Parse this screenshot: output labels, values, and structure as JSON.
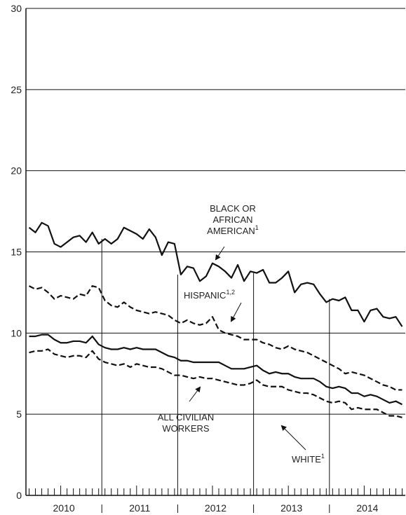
{
  "chart_data": {
    "type": "line",
    "ylim": [
      0,
      30
    ],
    "yticks": [
      0,
      5,
      10,
      15,
      20,
      25,
      30
    ],
    "ytick_labels": [
      "0",
      "5",
      "10",
      "15",
      "20",
      "25",
      "30"
    ],
    "xlim": [
      "2010-01",
      "2014-12"
    ],
    "year_labels": [
      "2010",
      "2011",
      "2012",
      "2013",
      "2014"
    ],
    "grid": "horizontal",
    "series": [
      {
        "name": "BLACK OR AFRICAN AMERICAN",
        "style": "solid",
        "values": [
          16.5,
          16.2,
          16.8,
          16.6,
          15.5,
          15.3,
          15.6,
          15.9,
          16.0,
          15.6,
          16.2,
          15.5,
          15.8,
          15.5,
          15.8,
          16.5,
          16.3,
          16.1,
          15.8,
          16.4,
          15.9,
          14.8,
          15.6,
          15.5,
          13.6,
          14.1,
          14.0,
          13.2,
          13.5,
          14.3,
          14.1,
          13.8,
          13.4,
          14.2,
          13.2,
          13.8,
          13.7,
          13.9,
          13.1,
          13.1,
          13.4,
          13.8,
          12.5,
          13.0,
          13.1,
          13.0,
          12.4,
          11.9,
          12.1,
          12.0,
          12.2,
          11.4,
          11.4,
          10.7,
          11.4,
          11.5,
          11.0,
          10.9,
          11.0,
          10.4
        ]
      },
      {
        "name": "HISPANIC",
        "style": "dashed",
        "values": [
          12.9,
          12.7,
          12.8,
          12.5,
          12.1,
          12.3,
          12.2,
          12.1,
          12.4,
          12.3,
          12.9,
          12.8,
          12.0,
          11.7,
          11.6,
          11.9,
          11.6,
          11.4,
          11.3,
          11.2,
          11.3,
          11.2,
          11.1,
          10.8,
          10.6,
          10.8,
          10.6,
          10.5,
          10.6,
          11.0,
          10.2,
          10.0,
          9.9,
          9.8,
          9.6,
          9.6,
          9.6,
          9.4,
          9.3,
          9.1,
          9.0,
          9.2,
          9.0,
          8.9,
          8.8,
          8.6,
          8.4,
          8.2,
          8.0,
          7.8,
          7.5,
          7.6,
          7.5,
          7.4,
          7.2,
          7.0,
          6.8,
          6.7,
          6.5,
          6.5
        ]
      },
      {
        "name": "ALL CIVILIAN WORKERS",
        "style": "solid",
        "values": [
          9.8,
          9.8,
          9.9,
          9.9,
          9.6,
          9.4,
          9.4,
          9.5,
          9.5,
          9.4,
          9.8,
          9.3,
          9.1,
          9.0,
          9.0,
          9.1,
          9.0,
          9.1,
          9.0,
          9.0,
          9.0,
          8.8,
          8.6,
          8.5,
          8.3,
          8.3,
          8.2,
          8.2,
          8.2,
          8.2,
          8.2,
          8.0,
          7.8,
          7.8,
          7.8,
          7.9,
          8.0,
          7.7,
          7.5,
          7.6,
          7.5,
          7.5,
          7.3,
          7.2,
          7.2,
          7.2,
          7.0,
          6.7,
          6.6,
          6.7,
          6.6,
          6.3,
          6.3,
          6.1,
          6.2,
          6.1,
          5.9,
          5.7,
          5.8,
          5.6
        ]
      },
      {
        "name": "WHITE",
        "style": "dashed",
        "values": [
          8.8,
          8.9,
          8.9,
          9.0,
          8.7,
          8.6,
          8.5,
          8.6,
          8.6,
          8.5,
          8.9,
          8.4,
          8.2,
          8.1,
          8.0,
          8.1,
          7.9,
          8.1,
          8.0,
          7.9,
          7.9,
          7.8,
          7.6,
          7.4,
          7.4,
          7.3,
          7.2,
          7.3,
          7.2,
          7.2,
          7.1,
          7.0,
          6.9,
          6.8,
          6.8,
          6.9,
          7.1,
          6.8,
          6.7,
          6.7,
          6.7,
          6.5,
          6.4,
          6.3,
          6.3,
          6.2,
          6.0,
          5.8,
          5.7,
          5.8,
          5.7,
          5.3,
          5.4,
          5.3,
          5.3,
          5.3,
          5.1,
          4.9,
          4.9,
          4.8
        ]
      }
    ],
    "annotations": [
      {
        "lines": [
          "BLACK OR",
          "AFRICAN",
          "AMERICAN"
        ],
        "superscript": "1"
      },
      {
        "lines": [
          "HISPANIC"
        ],
        "superscript": "1,2"
      },
      {
        "lines": [
          "ALL CIVILIAN",
          "WORKERS"
        ],
        "superscript": ""
      },
      {
        "lines": [
          "WHITE"
        ],
        "superscript": "1"
      }
    ]
  }
}
